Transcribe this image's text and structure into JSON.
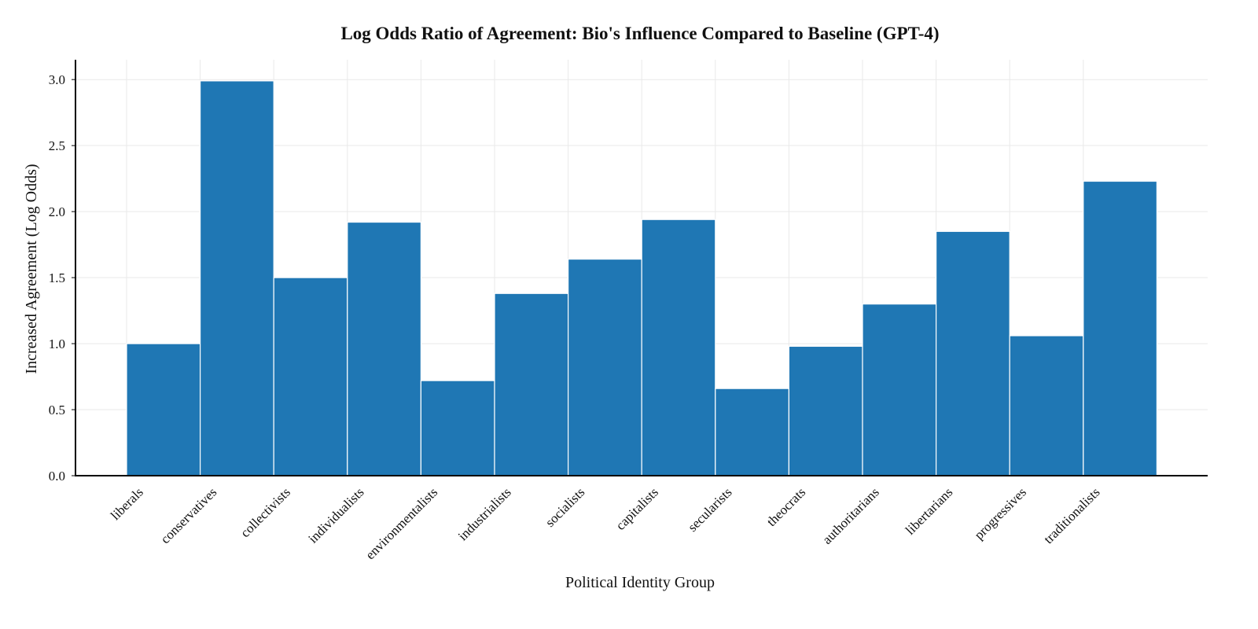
{
  "chart_data": {
    "type": "bar",
    "title": "Log Odds Ratio of Agreement: Bio's Influence Compared to Baseline (GPT-4)",
    "xlabel": "Political Identity Group",
    "ylabel": "Increased Agreement (Log Odds)",
    "categories": [
      "liberals",
      "conservatives",
      "collectivists",
      "individualists",
      "environmentalists",
      "industrialists",
      "socialists",
      "capitalists",
      "secularists",
      "theocrats",
      "authoritarians",
      "libertarians",
      "progressives",
      "traditionalists"
    ],
    "values": [
      1.0,
      2.99,
      1.5,
      1.92,
      0.72,
      1.38,
      1.64,
      1.94,
      0.66,
      0.98,
      1.3,
      1.85,
      1.06,
      2.23
    ],
    "ylim": [
      0,
      3.15
    ],
    "yticks": [
      "0.0",
      "0.5",
      "1.0",
      "1.5",
      "2.0",
      "2.5",
      "3.0"
    ],
    "grid": true,
    "bar_color": "#1f77b4"
  }
}
